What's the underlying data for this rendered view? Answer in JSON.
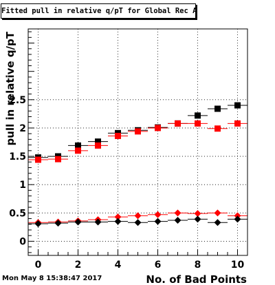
{
  "title": "Fitted pull in relative q/pT for Global Rec All NoHits",
  "timestamp": "Mon May  8 15:38:47 2017",
  "chart_data": {
    "type": "scatter",
    "title": "Fitted pull in relative q/pT for Global Rec All NoHits",
    "xlabel": "No. of Bad Points",
    "ylabel": "pull in relative q/pT",
    "xlim": [
      -0.5,
      10.5
    ],
    "ylim": [
      -0.25,
      3.75
    ],
    "grid": true,
    "x_ticks": [
      "0",
      "2",
      "4",
      "6",
      "8",
      "10"
    ],
    "y_ticks": [
      "0",
      "0.5",
      "1",
      "1.5",
      "2",
      "2.5"
    ],
    "x_tick_values": [
      0,
      2,
      4,
      6,
      8,
      10
    ],
    "y_tick_values": [
      0,
      0.5,
      1,
      1.5,
      2,
      2.5
    ],
    "series": [
      {
        "marker": "square",
        "color": "#000000",
        "x": [
          0,
          1,
          2,
          3,
          4,
          5,
          6,
          7,
          8,
          9,
          10
        ],
        "y": [
          1.48,
          1.5,
          1.69,
          1.76,
          1.91,
          1.96,
          2.01,
          2.08,
          2.22,
          2.34,
          2.4
        ]
      },
      {
        "marker": "square",
        "color": "#ff0000",
        "x": [
          0,
          1,
          2,
          3,
          4,
          5,
          6,
          7,
          8,
          9,
          10
        ],
        "y": [
          1.44,
          1.45,
          1.6,
          1.69,
          1.86,
          1.94,
          2.0,
          2.08,
          2.08,
          1.99,
          2.08
        ]
      },
      {
        "marker": "diamond",
        "color": "#ff0000",
        "x": [
          0,
          1,
          2,
          3,
          4,
          5,
          6,
          7,
          8,
          9,
          10
        ],
        "y": [
          0.33,
          0.34,
          0.36,
          0.38,
          0.43,
          0.45,
          0.47,
          0.5,
          0.49,
          0.5,
          0.45
        ]
      },
      {
        "marker": "diamond",
        "color": "#000000",
        "x": [
          0,
          1,
          2,
          3,
          4,
          5,
          6,
          7,
          8,
          9,
          10
        ],
        "y": [
          0.31,
          0.32,
          0.34,
          0.34,
          0.35,
          0.33,
          0.35,
          0.37,
          0.39,
          0.33,
          0.39
        ]
      }
    ]
  }
}
